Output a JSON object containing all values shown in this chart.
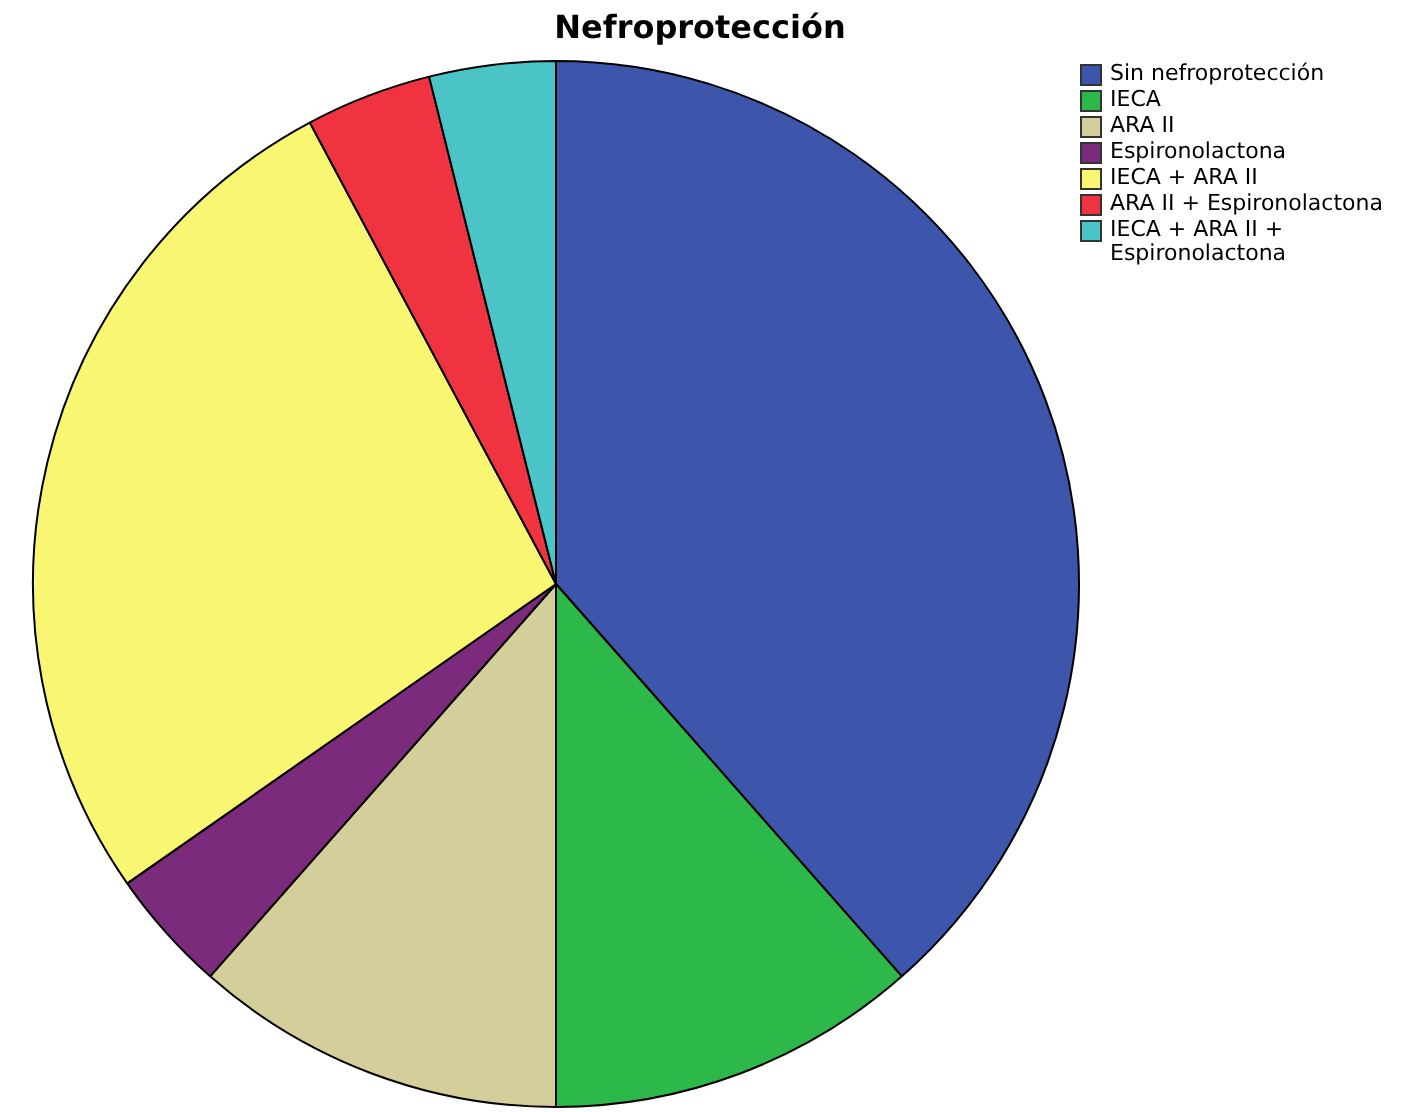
{
  "chart_data": {
    "type": "pie",
    "title": "Nefroprotección",
    "categories": [
      "Sin nefroprotección",
      "IECA",
      "ARA II",
      "Espironolactona",
      "IECA + ARA II",
      "ARA II + Espironolactona",
      "IECA + ARA II + Espironolactona"
    ],
    "values": [
      38.5,
      11.5,
      11.5,
      3.8,
      26.9,
      3.9,
      3.9
    ],
    "colors": [
      "#3d56ab",
      "#2db84a",
      "#d4cf9a",
      "#7b2a7c",
      "#f9f772",
      "#ef3340",
      "#4bc4c8"
    ],
    "legend": "top right"
  }
}
